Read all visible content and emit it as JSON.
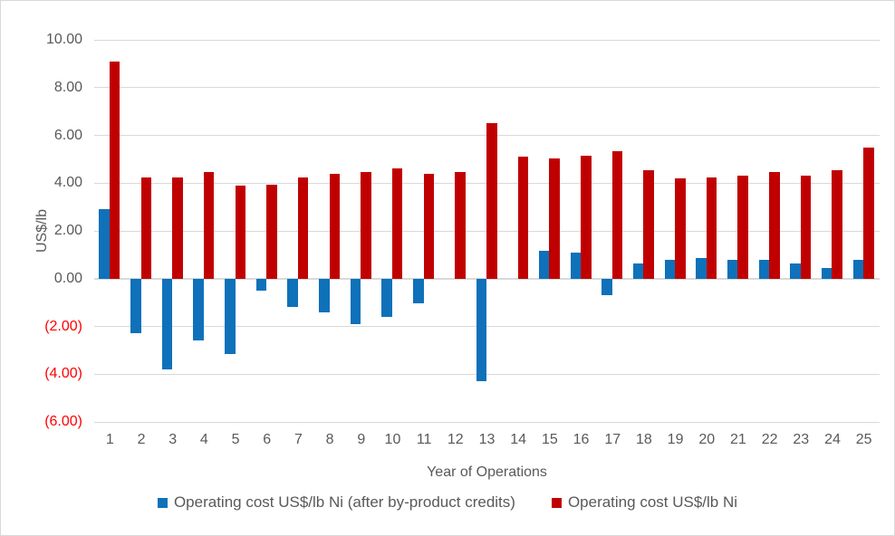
{
  "chart_data": {
    "type": "bar",
    "title": "",
    "xlabel": "Year of Operations",
    "ylabel": "US$/lb",
    "categories": [
      1,
      2,
      3,
      4,
      5,
      6,
      7,
      8,
      9,
      10,
      11,
      12,
      13,
      14,
      15,
      16,
      17,
      18,
      19,
      20,
      21,
      22,
      23,
      24,
      25
    ],
    "series": [
      {
        "key": "after-credits",
        "name": "Operating cost US$/lb Ni (after by-product credits)",
        "color": "#0E71BA",
        "values": [
          2.9,
          -2.3,
          -3.8,
          -2.6,
          -3.15,
          -0.5,
          -1.2,
          -1.4,
          -1.9,
          -1.6,
          -1.05,
          0,
          -4.3,
          0,
          1.15,
          1.1,
          -0.7,
          0.65,
          0.8,
          0.85,
          0.8,
          0.8,
          0.65,
          0.45,
          0.8
        ]
      },
      {
        "key": "operating-cost",
        "name": "Operating cost US$/lb Ni",
        "color": "#C00000",
        "values": [
          9.1,
          4.25,
          4.25,
          4.45,
          3.9,
          3.95,
          4.25,
          4.4,
          4.45,
          4.6,
          4.4,
          4.45,
          6.5,
          5.1,
          5.05,
          5.15,
          5.35,
          4.55,
          4.2,
          4.25,
          4.3,
          4.45,
          4.3,
          4.55,
          5.5
        ]
      }
    ],
    "ylim": [
      -6,
      10
    ],
    "yticks": [
      {
        "v": 10,
        "label": "10.00"
      },
      {
        "v": 8,
        "label": "8.00"
      },
      {
        "v": 6,
        "label": "6.00"
      },
      {
        "v": 4,
        "label": "4.00"
      },
      {
        "v": 2,
        "label": "2.00"
      },
      {
        "v": 0,
        "label": "0.00"
      },
      {
        "v": -2,
        "label": "(2.00)"
      },
      {
        "v": -4,
        "label": "(4.00)"
      },
      {
        "v": -6,
        "label": "(6.00)"
      }
    ],
    "grid": true,
    "legend_position": "bottom",
    "colors": {
      "label": "#595959",
      "negative_label": "#FF0000",
      "gridline": "#D9D9D9",
      "axis_line": "#D9D9D9",
      "border": "#D9D9D9",
      "background": "#FFFFFF"
    }
  }
}
